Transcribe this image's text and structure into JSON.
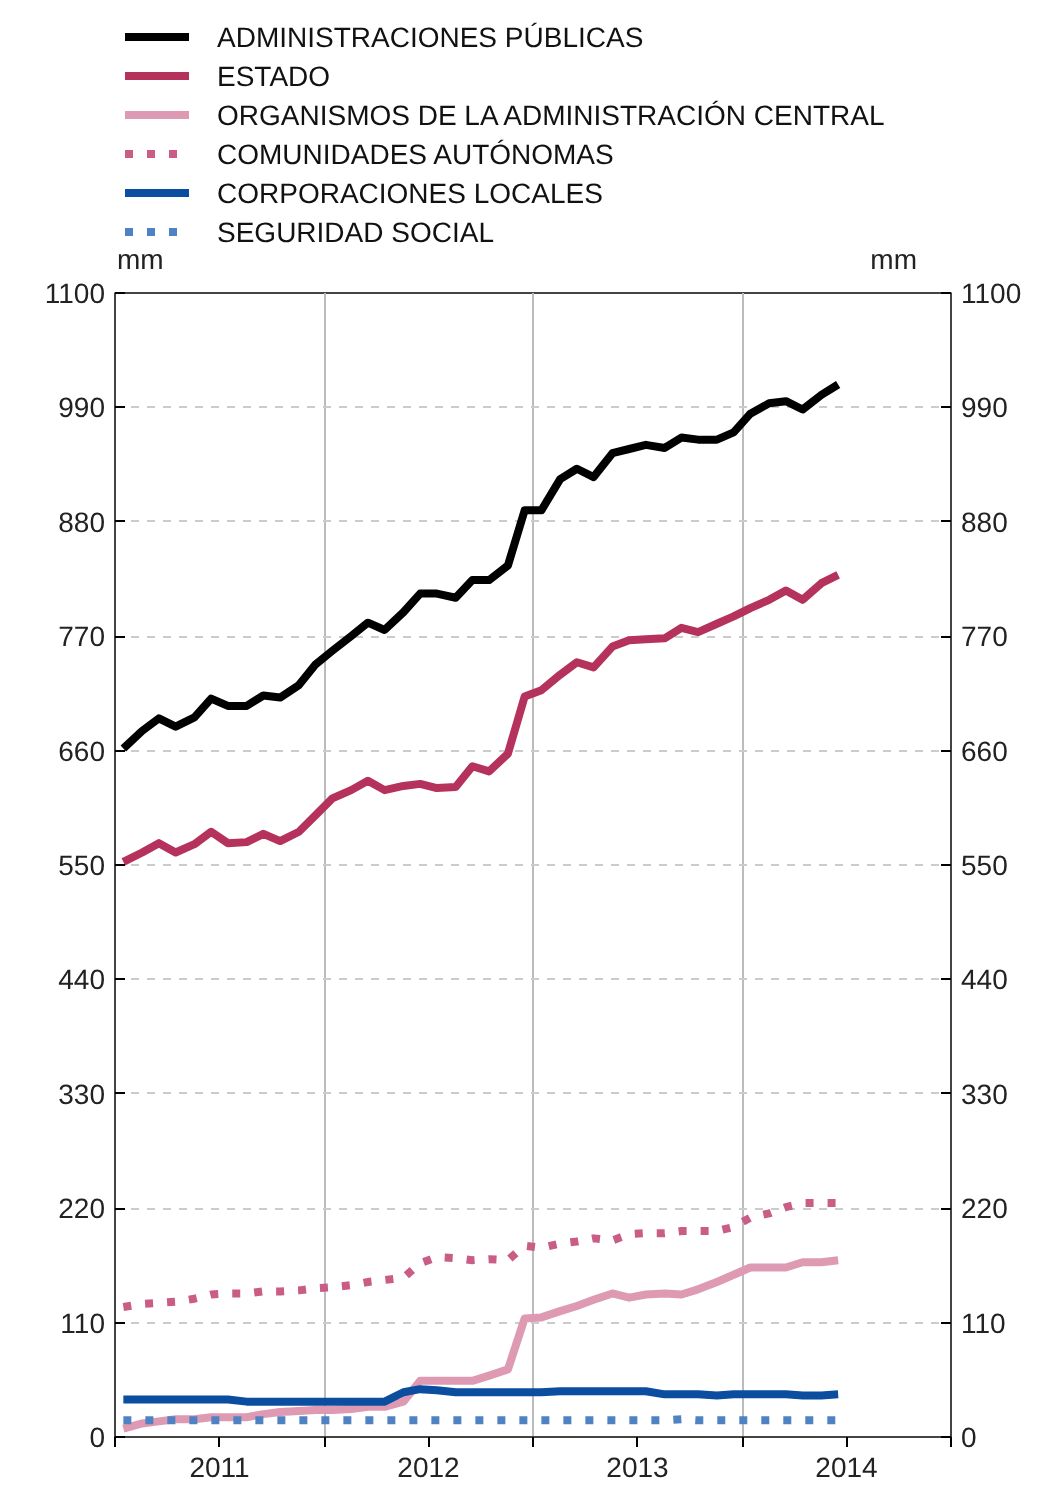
{
  "chart_data": {
    "type": "line",
    "ylabel": "mm",
    "y2label": "mm",
    "x": [
      2011.04,
      2011.13,
      2011.21,
      2011.29,
      2011.38,
      2011.46,
      2011.54,
      2011.63,
      2011.71,
      2011.79,
      2011.88,
      2011.96,
      2012.04,
      2012.13,
      2012.21,
      2012.29,
      2012.38,
      2012.46,
      2012.54,
      2012.63,
      2012.71,
      2012.79,
      2012.88,
      2012.96,
      2013.04,
      2013.13,
      2013.21,
      2013.29,
      2013.38,
      2013.46,
      2013.54,
      2013.63,
      2013.71,
      2013.79,
      2013.88,
      2013.96,
      2014.04,
      2014.13,
      2014.21,
      2014.29,
      2014.38,
      2014.46
    ],
    "series": [
      {
        "name": "ADMINISTRACIONES PÚBLICAS",
        "color": "#000000",
        "line_style": "solid",
        "values": [
          662,
          679,
          691,
          683,
          692,
          710,
          703,
          703,
          713,
          711,
          723,
          743,
          756,
          770,
          783,
          776,
          793,
          811,
          811,
          807,
          824,
          824,
          838,
          891,
          891,
          921,
          931,
          923,
          946,
          950,
          954,
          951,
          961,
          959,
          959,
          966,
          984,
          994,
          996,
          988,
          1002,
          1012
        ]
      },
      {
        "name": "ESTADO",
        "color": "#b5325c",
        "line_style": "solid",
        "values": [
          553,
          562,
          571,
          562,
          570,
          582,
          571,
          572,
          580,
          573,
          582,
          598,
          614,
          622,
          631,
          622,
          626,
          628,
          624,
          625,
          645,
          640,
          657,
          712,
          718,
          733,
          745,
          740,
          760,
          766,
          767,
          768,
          778,
          774,
          782,
          789,
          797,
          805,
          814,
          805,
          821,
          829
        ]
      },
      {
        "name": "ORGANISMOS DE LA ADMINISTRACIÓN CENTRAL",
        "color": "#dd9ab2",
        "line_style": "solid",
        "values": [
          8,
          13,
          15,
          17,
          17,
          19,
          19,
          19,
          22,
          24,
          25,
          26,
          26,
          27,
          29,
          29,
          34,
          54,
          54,
          54,
          54,
          59,
          65,
          114,
          115,
          121,
          126,
          132,
          138,
          134,
          137,
          138,
          137,
          142,
          149,
          156,
          163,
          163,
          163,
          168,
          168,
          170
        ]
      },
      {
        "name": "COMUNIDADES AUTÓNOMAS",
        "color": "#c95d86",
        "line_style": "dotted",
        "values": [
          125,
          128,
          129,
          130,
          133,
          137,
          138,
          138,
          140,
          140,
          141,
          143,
          144,
          146,
          149,
          151,
          153,
          167,
          173,
          172,
          170,
          171,
          170,
          184,
          182,
          186,
          188,
          191,
          189,
          195,
          196,
          196,
          198,
          198,
          198,
          202,
          211,
          215,
          221,
          225,
          225,
          225
        ]
      },
      {
        "name": "CORPORACIONES LOCALES",
        "color": "#0b4d9e",
        "line_style": "solid",
        "values": [
          36,
          36,
          36,
          36,
          36,
          36,
          36,
          34,
          34,
          34,
          34,
          34,
          34,
          34,
          34,
          34,
          43,
          46,
          45,
          43,
          43,
          43,
          43,
          43,
          43,
          44,
          44,
          44,
          44,
          44,
          44,
          41,
          41,
          41,
          40,
          41,
          41,
          41,
          41,
          40,
          40,
          41
        ]
      },
      {
        "name": "SEGURIDAD SOCIAL",
        "color": "#4f82c2",
        "line_style": "dotted",
        "values": [
          16,
          16,
          16,
          16,
          16,
          16,
          16,
          16,
          16,
          16,
          16,
          16,
          16,
          16,
          16,
          16,
          16,
          16,
          16,
          16,
          16,
          16,
          16,
          16,
          16,
          16,
          16,
          16,
          16,
          16,
          16,
          16,
          17,
          16,
          16,
          16,
          16,
          16,
          16,
          16,
          16,
          16
        ]
      }
    ],
    "xlim": [
      2011,
      2015
    ],
    "xticks": [
      {
        "value": 2011,
        "label": null
      },
      {
        "value": 2011.5,
        "label": "2011"
      },
      {
        "value": 2012,
        "label": null
      },
      {
        "value": 2012.5,
        "label": "2012"
      },
      {
        "value": 2013,
        "label": null
      },
      {
        "value": 2013.5,
        "label": "2013"
      },
      {
        "value": 2014,
        "label": null
      },
      {
        "value": 2014.5,
        "label": "2014"
      },
      {
        "value": 2015,
        "label": null
      }
    ],
    "ylim": [
      0,
      1100
    ],
    "yticks": [
      0,
      110,
      220,
      330,
      440,
      550,
      660,
      770,
      880,
      990,
      1100
    ],
    "y2lim": [
      0,
      1100
    ],
    "y2ticks": [
      0,
      110,
      220,
      330,
      440,
      550,
      660,
      770,
      880,
      990,
      1100
    ],
    "grid": true,
    "legend": "top",
    "marker": "none"
  }
}
